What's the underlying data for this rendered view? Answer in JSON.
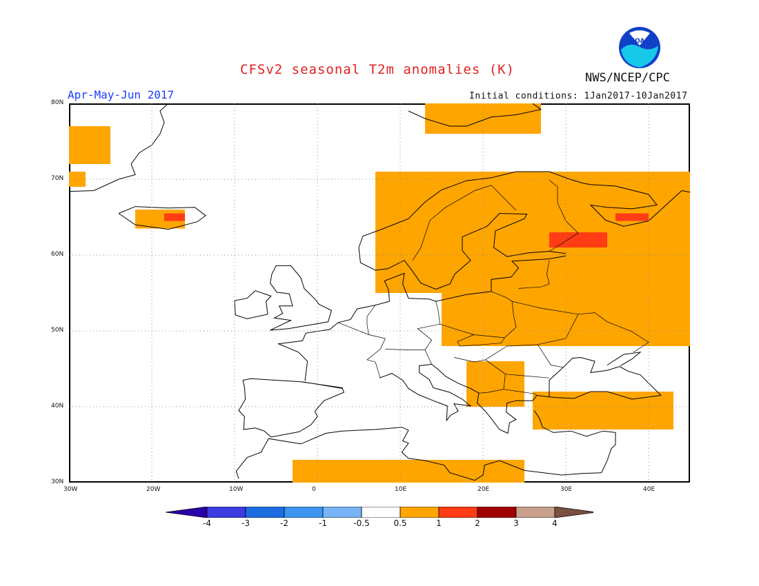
{
  "header": {
    "title": "CFSv2 seasonal T2m anomalies (K)",
    "season": "Apr-May-Jun 2017",
    "initial_conditions": "Initial conditions: 1Jan2017-10Jan2017",
    "agency": "NWS/NCEP/CPC",
    "logo_text": "NOAA"
  },
  "map": {
    "region": "Europe",
    "lon_range": [
      -30,
      45
    ],
    "lat_range": [
      30,
      80
    ],
    "lat_labels": [
      "80N",
      "70N",
      "60N",
      "50N",
      "40N",
      "30N"
    ],
    "lon_labels": [
      "30W",
      "20W",
      "10W",
      "0",
      "10E",
      "20E",
      "30E",
      "40E"
    ],
    "grid": "dotted",
    "anomaly_colors": {
      "0.5-1": "#ffa500",
      "1-2": "#ff3c14",
      "white": "#ffffff"
    },
    "anomaly_regions": [
      {
        "name": "Greenland east coast",
        "class": "0.5-1",
        "lon": [
          -30,
          -25
        ],
        "lat": [
          72,
          77
        ]
      },
      {
        "name": "Greenland south",
        "class": "0.5-1",
        "lon": [
          -30,
          -28
        ],
        "lat": [
          69,
          71
        ]
      },
      {
        "name": "Iceland",
        "class": "0.5-1",
        "lon": [
          -22,
          -16
        ],
        "lat": [
          63.5,
          66
        ]
      },
      {
        "name": "Iceland warm spot",
        "class": "1-2",
        "lon": [
          -18.5,
          -16
        ],
        "lat": [
          64.5,
          65.5
        ]
      },
      {
        "name": "Svalbard",
        "class": "0.5-1",
        "lon": [
          13,
          27
        ],
        "lat": [
          76,
          80
        ]
      },
      {
        "name": "Scandinavia",
        "class": "0.5-1",
        "lon": [
          7,
          45
        ],
        "lat": [
          55,
          71
        ]
      },
      {
        "name": "Eastern Europe",
        "class": "0.5-1",
        "lon": [
          15,
          45
        ],
        "lat": [
          48,
          58
        ]
      },
      {
        "name": "Finland warm spot",
        "class": "1-2",
        "lon": [
          28,
          35
        ],
        "lat": [
          61,
          63
        ]
      },
      {
        "name": "Kola warm spot",
        "class": "1-2",
        "lon": [
          36,
          40
        ],
        "lat": [
          64.5,
          65.5
        ]
      },
      {
        "name": "Turkey",
        "class": "0.5-1",
        "lon": [
          26,
          43
        ],
        "lat": [
          37,
          42
        ]
      },
      {
        "name": "North Africa",
        "class": "0.5-1",
        "lon": [
          -3,
          25
        ],
        "lat": [
          30,
          33
        ]
      },
      {
        "name": "Balkans",
        "class": "0.5-1",
        "lon": [
          18,
          25
        ],
        "lat": [
          40,
          46
        ]
      }
    ]
  },
  "colorbar": {
    "labels": [
      "-4",
      "-3",
      "-2",
      "-1",
      "-0.5",
      "0.5",
      "1",
      "2",
      "3",
      "4"
    ],
    "colors": [
      "#2a00a8",
      "#3c3ce0",
      "#1c6ee0",
      "#3c96f0",
      "#78b4f5",
      "#ffffff",
      "#ffa500",
      "#ff3c14",
      "#a00000",
      "#c8a08c",
      "#7a5040"
    ]
  }
}
